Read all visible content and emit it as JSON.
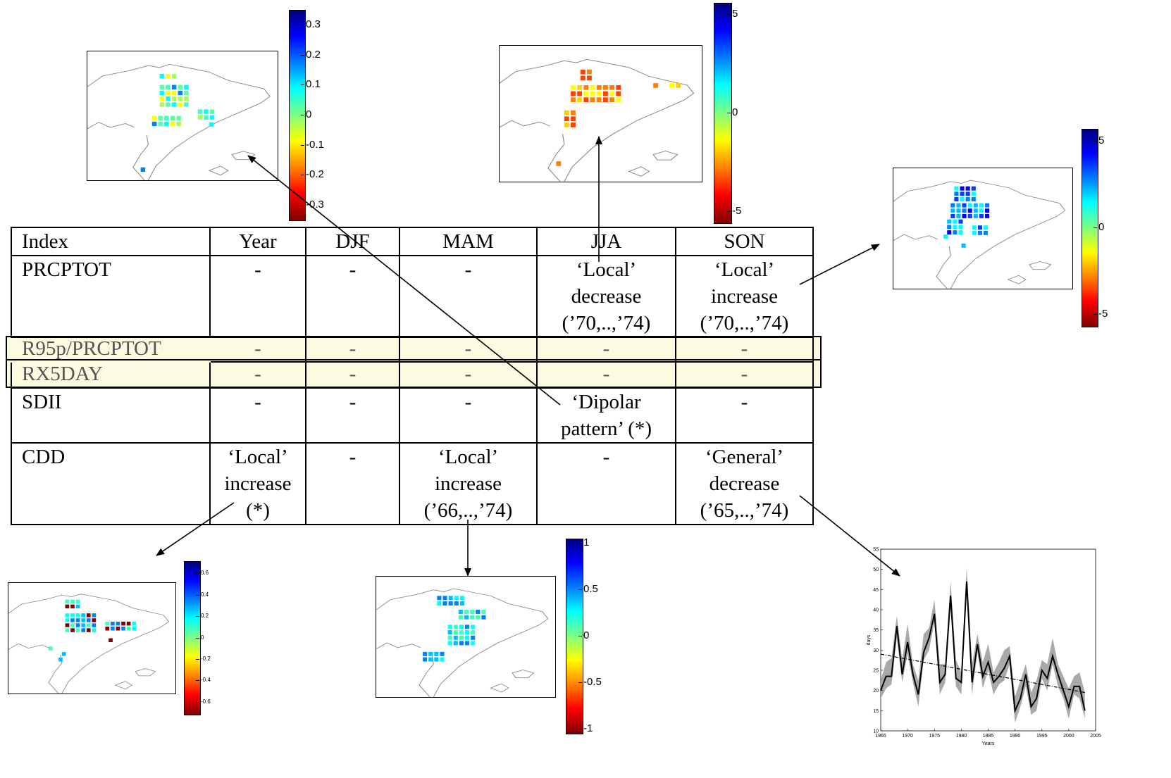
{
  "table": {
    "headers": [
      "Index",
      "Year",
      "DJF",
      "MAM",
      "JJA",
      "SON"
    ],
    "rows": [
      {
        "index": "PRCPTOT",
        "cells": [
          "-",
          "-",
          "-",
          "‘Local’\ndecrease\n(’70,..,’74)",
          "‘Local’\nincrease\n(’70,..,’74)"
        ]
      },
      {
        "index": "R95p/PRCPTOT",
        "cells": [
          "-",
          "-",
          "-",
          "-",
          "-"
        ],
        "highlight": true
      },
      {
        "index": "RX5DAY",
        "cells": [
          "-",
          "-",
          "-",
          "-",
          "-"
        ],
        "highlight": true
      },
      {
        "index": "SDII",
        "cells": [
          "-",
          "-",
          "-",
          "‘Dipolar\npattern’ (*)",
          "-"
        ]
      },
      {
        "index": "CDD",
        "cells": [
          "‘Local’\nincrease\n(*)",
          "-",
          "‘Local’\nincrease\n(’66,..,’74)",
          "-",
          "‘General’\ndecrease\n(’65,..,’74)"
        ]
      }
    ]
  },
  "colorbars": {
    "sdii": [
      "0.3",
      "0.2",
      "0.1",
      "0",
      "-0.1",
      "-0.2",
      "-0.3"
    ],
    "jja_prcptot": [
      "5",
      "0",
      "-5"
    ],
    "son_prcptot": [
      "5",
      "0",
      "-5"
    ],
    "cdd_year": [
      "0.6",
      "0.4",
      "0.2",
      "0",
      "-0.2",
      "-0.4",
      "-0.6"
    ],
    "cdd_mam": [
      "1",
      "0.5",
      "0",
      "-0.5",
      "-1"
    ]
  },
  "timeseries": {
    "ylabel": "days",
    "xlabel": "Years",
    "xticks": [
      "1965",
      "1970",
      "1975",
      "1980",
      "1985",
      "1990",
      "1995",
      "2000",
      "2005"
    ],
    "yticks": [
      "10",
      "15",
      "20",
      "25",
      "30",
      "35",
      "40",
      "45",
      "50",
      "55"
    ],
    "values": [
      20,
      23.5,
      23.5,
      36,
      24,
      32,
      24,
      19,
      29.5,
      33,
      39,
      22,
      24,
      43.5,
      23,
      22,
      47,
      22,
      31.5,
      23.5,
      27,
      22,
      23.5,
      25.5,
      28.5,
      15,
      18,
      24,
      16,
      18,
      25,
      23,
      28.5,
      24,
      20,
      16,
      21,
      21,
      15
    ]
  },
  "colors": {
    "highlight": "#fcfbe1",
    "map_coast": "#888888",
    "trend_band": "#a9a9a9"
  }
}
